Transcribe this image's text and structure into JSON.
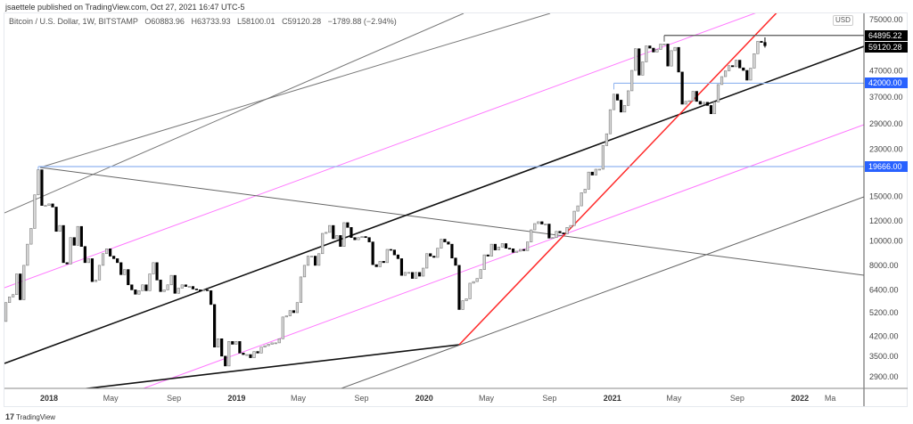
{
  "header": {
    "published": "jsaettele published on TradingView.com, Oct 27, 2021 16:47 UTC-5"
  },
  "legend": {
    "symbol": "Bitcoin / U.S. Dollar, 1W, BITSTAMP",
    "open": "O60883.96",
    "high": "H63733.93",
    "low": "L58100.01",
    "close": "C59120.28",
    "change": "−1789.88 (−2.94%)"
  },
  "currency_label": "USD",
  "footer": {
    "logo_text": "TradingView",
    "logo_mark": "17"
  },
  "colors": {
    "up_candle": "#d9d9d9",
    "down_candle": "#000000",
    "horizontal_level": "#90b4f0",
    "channel_magenta": "#ff77ff",
    "trend_red": "#ff2a2a",
    "tag_blue": "#2962ff",
    "tag_black": "#000000"
  },
  "chart_data": {
    "type": "candlestick",
    "title": "Bitcoin / U.S. Dollar, 1W, BITSTAMP",
    "interval": "1W",
    "y_scale": "log",
    "ylim": [
      2600,
      80000
    ],
    "xlim": [
      "2017-10-05",
      "2022-03-15"
    ],
    "grid": false,
    "first_week": "2017-10-09",
    "first_open": 4800,
    "close": [
      5700,
      6000,
      6130,
      7400,
      5850,
      8000,
      9700,
      11200,
      15200,
      19100,
      13800,
      13800,
      14000,
      13600,
      10900,
      11500,
      8200,
      8100,
      10300,
      9600,
      11400,
      9500,
      8200,
      8500,
      6900,
      7000,
      8000,
      8900,
      9300,
      8700,
      8500,
      8200,
      7350,
      7700,
      6700,
      6400,
      6150,
      6350,
      6700,
      6350,
      7400,
      8200,
      7000,
      6300,
      6400,
      6700,
      7300,
      6200,
      6500,
      6700,
      6600,
      6600,
      6450,
      6400,
      6350,
      6400,
      6350,
      5600,
      3800,
      4100,
      3500,
      3200,
      4000,
      3900,
      4000,
      3600,
      3550,
      3550,
      3450,
      3650,
      3600,
      3800,
      3850,
      3900,
      3950,
      3950,
      4100,
      5000,
      5050,
      5300,
      5200,
      5700,
      7200,
      8000,
      8700,
      8700,
      8000,
      8900,
      10700,
      10800,
      11500,
      10200,
      10500,
      9500,
      11800,
      11300,
      10300,
      10100,
      10300,
      10400,
      10300,
      9900,
      8050,
      7900,
      8300,
      8200,
      9250,
      9200,
      8800,
      8500,
      7300,
      7500,
      7500,
      7100,
      7500,
      7250,
      7800,
      8900,
      8700,
      8600,
      9350,
      10150,
      9900,
      9700,
      8550,
      8000,
      5350,
      5800,
      5900,
      6800,
      6900,
      7100,
      7700,
      8800,
      8700,
      9700,
      9200,
      9450,
      9750,
      9350,
      9300,
      9000,
      9100,
      9250,
      9150,
      9900,
      11050,
      11700,
      11900,
      11650,
      11650,
      10250,
      10300,
      10900,
      10750,
      10650,
      11300,
      11500,
      13100,
      13750,
      15500,
      16000,
      18700,
      18200,
      19200,
      19200,
      23800,
      26500,
      33000,
      38000,
      36000,
      32300,
      34300,
      39200,
      47200,
      57500,
      45200,
      51000,
      59000,
      57800,
      55800,
      57100,
      60000,
      60000,
      49100,
      56500,
      58200,
      46500,
      34700,
      35600,
      35800,
      39000,
      35600,
      34700,
      35300,
      34300,
      31800,
      35400,
      41500,
      44600,
      47000,
      49300,
      48800,
      51800,
      48300,
      47200,
      43200,
      48200,
      54950,
      61500,
      60883.96,
      59120.28
    ],
    "last_candle": {
      "open": 60883.96,
      "high": 63733.93,
      "low": 58100.01,
      "close": 59120.28,
      "change": -1789.88,
      "change_pct": -2.94
    },
    "price_ticks": [
      75000,
      47000,
      37000,
      29000,
      23000,
      15000,
      12000,
      10000,
      8000,
      6400,
      5200,
      4200,
      3500,
      2900
    ],
    "price_tick_labels": [
      "75000.00",
      "47000.00",
      "37000.00",
      "29000.00",
      "23000.00",
      "15000.00",
      "12000.00",
      "10000.00",
      "8000.00",
      "6400.00",
      "5200.00",
      "4200.00",
      "3500.00",
      "2900.00"
    ],
    "price_tags": [
      {
        "value": 64895.22,
        "label": "64895.22",
        "style": "black"
      },
      {
        "value": 59120.28,
        "label": "59120.28",
        "style": "black"
      },
      {
        "value": 42000,
        "label": "42000.00",
        "style": "blue"
      },
      {
        "value": 19666,
        "label": "19666.00",
        "style": "blue"
      }
    ],
    "time_ticks": [
      {
        "date": "2018-01-01",
        "label": "2018",
        "year": true
      },
      {
        "date": "2018-05-01",
        "label": "May"
      },
      {
        "date": "2018-09-01",
        "label": "Sep"
      },
      {
        "date": "2019-01-01",
        "label": "2019",
        "year": true
      },
      {
        "date": "2019-05-01",
        "label": "May"
      },
      {
        "date": "2019-09-01",
        "label": "Sep"
      },
      {
        "date": "2020-01-01",
        "label": "2020",
        "year": true
      },
      {
        "date": "2020-05-01",
        "label": "May"
      },
      {
        "date": "2020-09-01",
        "label": "Sep"
      },
      {
        "date": "2021-01-01",
        "label": "2021",
        "year": true
      },
      {
        "date": "2021-05-01",
        "label": "May"
      },
      {
        "date": "2021-09-01",
        "label": "Sep"
      },
      {
        "date": "2022-01-01",
        "label": "2022",
        "year": true
      },
      {
        "date": "2022-03-01",
        "label": "Ma"
      }
    ],
    "horizontal_levels": [
      {
        "value": 64895.22,
        "from": "2021-04-12",
        "color": "#555555"
      },
      {
        "value": 42000,
        "from": "2021-01-04",
        "color": "#90b4f0"
      },
      {
        "value": 19666,
        "from": "2017-12-11",
        "color": "#90b4f0"
      }
    ]
  }
}
